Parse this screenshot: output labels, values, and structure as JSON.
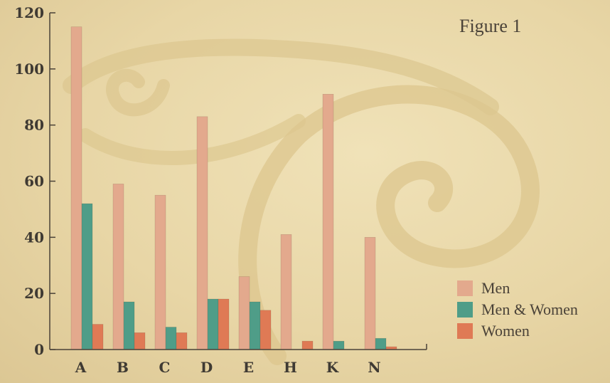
{
  "colors": {
    "men": "#e3a98d",
    "men_women": "#4f9d88",
    "women": "#df7a55",
    "axis": "#4a4238",
    "swirl": "#dcc68e"
  },
  "figure": {
    "label": "Figure 1"
  },
  "legend": {
    "items": [
      {
        "label": "Men",
        "color": "#e3a98d"
      },
      {
        "label": "Men & Women",
        "color": "#4f9d88"
      },
      {
        "label": "Women",
        "color": "#df7a55"
      }
    ]
  },
  "chart_data": {
    "type": "bar",
    "title": "",
    "xlabel": "",
    "ylabel": "",
    "ylim": [
      0,
      120
    ],
    "yticks": [
      0,
      20,
      40,
      60,
      80,
      100,
      120
    ],
    "grid": false,
    "legend_position": "bottom-right",
    "categories": [
      "A",
      "B",
      "C",
      "D",
      "E",
      "H",
      "K",
      "N"
    ],
    "series": [
      {
        "name": "Men",
        "color": "#e3a98d",
        "values": [
          115,
          59,
          55,
          83,
          26,
          41,
          91,
          40
        ]
      },
      {
        "name": "Men & Women",
        "color": "#4f9d88",
        "values": [
          52,
          17,
          8,
          18,
          17,
          0,
          3,
          4
        ]
      },
      {
        "name": "Women",
        "color": "#df7a55",
        "values": [
          9,
          6,
          6,
          18,
          14,
          3,
          0,
          1
        ]
      }
    ]
  }
}
